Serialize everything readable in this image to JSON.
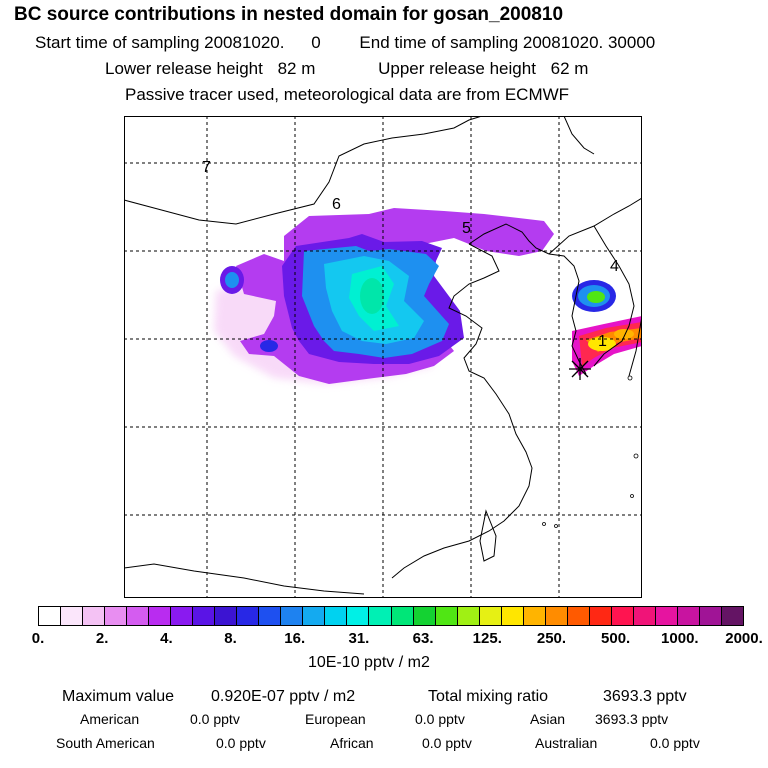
{
  "header": {
    "title": "BC  source contributions in nested domain for gosan_200810",
    "sampling_start_label": "Start time of sampling 20081020.",
    "sampling_start_value": "0",
    "sampling_end_label": "End time of sampling 20081020. 30000",
    "lower_release_label": "Lower release height",
    "lower_release_value": "82 m",
    "upper_release_label": "Upper release height",
    "upper_release_value": "62 m",
    "model_note": "Passive tracer used, meteorological data are from ECMWF"
  },
  "map": {
    "region_labels": [
      "7",
      "6",
      "5",
      "4",
      "1"
    ],
    "receptor_marker": "star-marker"
  },
  "colorbar": {
    "tick_labels": [
      "0.",
      "2.",
      "4.",
      "8.",
      "16.",
      "31.",
      "63.",
      "125.",
      "250.",
      "500.",
      "1000.",
      "2000."
    ],
    "colors": [
      "#ffffff",
      "#fbe6fb",
      "#f4c2f4",
      "#e88ef1",
      "#d45cf0",
      "#b92cf0",
      "#8a1af0",
      "#5a14e6",
      "#3c14d2",
      "#2828e6",
      "#1e50f0",
      "#1e82f0",
      "#14aaf0",
      "#00d2f0",
      "#00f0e6",
      "#00f0b4",
      "#00e678",
      "#14d232",
      "#50e614",
      "#a0f014",
      "#e6f014",
      "#ffe600",
      "#ffb400",
      "#ff8c00",
      "#ff5a00",
      "#ff2814",
      "#ff1450",
      "#f01478",
      "#e614a0",
      "#c814a0",
      "#a01496",
      "#641464"
    ],
    "unit": "10E-10 pptv / m2"
  },
  "summary": {
    "max_label": "Maximum value",
    "max_value": "0.920E-07 pptv / m2",
    "total_label": "Total mixing ratio",
    "total_value": "3693.3 pptv",
    "regions": [
      {
        "name": "American",
        "value": "0.0 pptv"
      },
      {
        "name": "European",
        "value": "0.0 pptv"
      },
      {
        "name": "Asian",
        "value": "3693.3 pptv"
      },
      {
        "name": "South American",
        "value": "0.0 pptv"
      },
      {
        "name": "African",
        "value": "0.0 pptv"
      },
      {
        "name": "Australian",
        "value": "0.0 pptv"
      }
    ]
  }
}
